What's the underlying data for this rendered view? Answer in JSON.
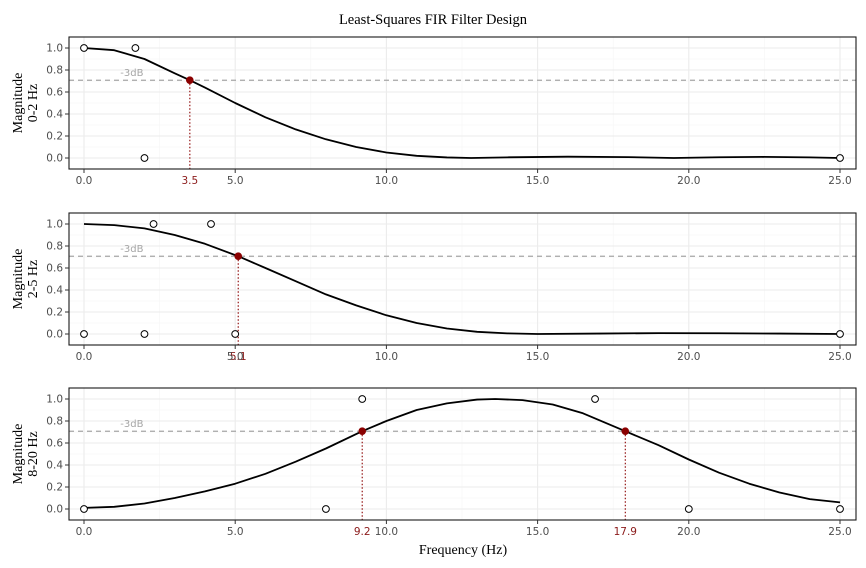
{
  "chart_data": {
    "type": "line",
    "title": "Least-Squares FIR Filter Design",
    "xlabel": "Frequency (Hz)",
    "xlim": [
      0,
      25
    ],
    "xticks": [
      "0.0",
      "5.0",
      "10.0",
      "15.0",
      "20.0",
      "25.0"
    ],
    "ylim": [
      0,
      1
    ],
    "yticks": [
      "0.0",
      "0.2",
      "0.4",
      "0.6",
      "0.8",
      "1.0"
    ],
    "reference_line": {
      "label": "-3dB",
      "y": 0.707
    },
    "colors": {
      "curve": "#000000",
      "reference": "#a6a6a6",
      "crossing": "#8b0000",
      "crossing_label": "#8b1a1a",
      "grid_major": "#ebebeb",
      "grid_minor": "#f5f5f5"
    },
    "panels": [
      {
        "ylabel_line1": "Magnitude",
        "ylabel_line2": "0-2 Hz",
        "curve": {
          "x": [
            0,
            1,
            2,
            3,
            3.5,
            4,
            5,
            6,
            7,
            8,
            9,
            10,
            11,
            12,
            12.8,
            14,
            16,
            18,
            19.5,
            21,
            22.5,
            24,
            25
          ],
          "y": [
            1.0,
            0.98,
            0.9,
            0.77,
            0.707,
            0.64,
            0.5,
            0.37,
            0.26,
            0.17,
            0.1,
            0.05,
            0.02,
            0.005,
            0.0,
            0.006,
            0.012,
            0.008,
            0.0,
            0.007,
            0.01,
            0.006,
            0.0
          ]
        },
        "design_points": {
          "x": [
            0,
            1.7,
            2,
            25
          ],
          "y": [
            1,
            1,
            0,
            0
          ]
        },
        "crossings": [
          {
            "x": 3.5,
            "label": "3.5"
          }
        ]
      },
      {
        "ylabel_line1": "Magnitude",
        "ylabel_line2": "2-5 Hz",
        "curve": {
          "x": [
            0,
            1,
            2,
            3,
            4,
            5.1,
            6,
            7,
            8,
            9,
            10,
            11,
            12,
            13,
            14,
            15,
            17,
            19,
            21,
            23,
            25
          ],
          "y": [
            1.0,
            0.99,
            0.96,
            0.9,
            0.82,
            0.707,
            0.6,
            0.48,
            0.36,
            0.26,
            0.17,
            0.1,
            0.05,
            0.02,
            0.006,
            0.0,
            0.004,
            0.008,
            0.007,
            0.004,
            0.0
          ]
        },
        "design_points": {
          "x": [
            0,
            2,
            2.3,
            4.2,
            5,
            25
          ],
          "y": [
            0,
            0,
            1,
            1,
            0,
            0
          ]
        },
        "crossings": [
          {
            "x": 5.1,
            "label": "5.1"
          }
        ]
      },
      {
        "ylabel_line1": "Magnitude",
        "ylabel_line2": "8-20 Hz",
        "curve": {
          "x": [
            0,
            1,
            2,
            3,
            4,
            5,
            6,
            7,
            8,
            9.2,
            10,
            11,
            12,
            13,
            13.6,
            14.5,
            15.5,
            16.5,
            17.9,
            19,
            20,
            21,
            22,
            23,
            24,
            25
          ],
          "y": [
            0.01,
            0.02,
            0.05,
            0.1,
            0.16,
            0.23,
            0.32,
            0.43,
            0.55,
            0.707,
            0.8,
            0.9,
            0.96,
            0.995,
            1.0,
            0.99,
            0.95,
            0.87,
            0.707,
            0.58,
            0.45,
            0.33,
            0.23,
            0.15,
            0.09,
            0.06
          ]
        },
        "design_points": {
          "x": [
            0,
            8,
            9.2,
            16.9,
            20,
            25
          ],
          "y": [
            0,
            0,
            1,
            1,
            0,
            0
          ]
        },
        "crossings": [
          {
            "x": 9.2,
            "label": "9.2"
          },
          {
            "x": 17.9,
            "label": "17.9"
          }
        ]
      }
    ]
  }
}
